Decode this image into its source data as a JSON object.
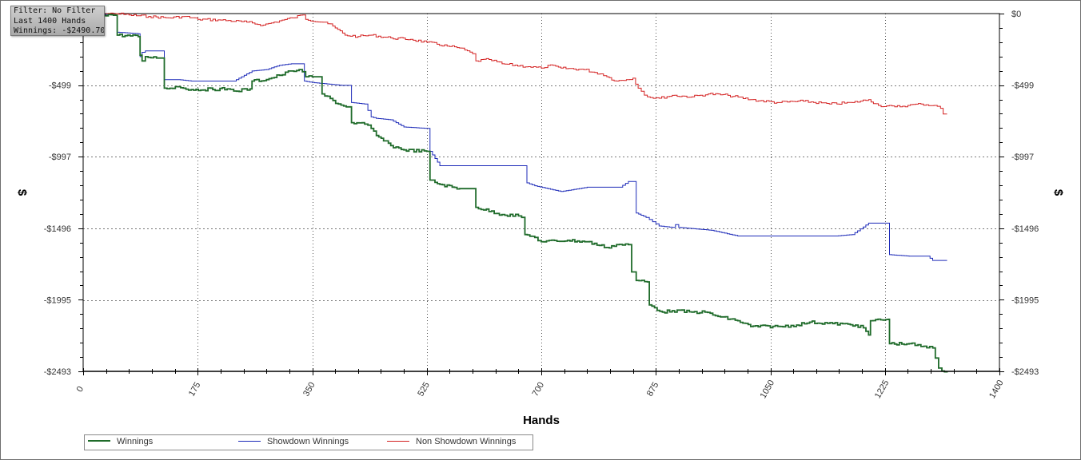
{
  "info_box": {
    "line1": "Filter: No Filter",
    "line2": "Last 1400 Hands",
    "line3": "Winnings: -$2490.70"
  },
  "chart_data": {
    "type": "line",
    "xlabel": "Hands",
    "ylabel_left": "$",
    "ylabel_right": "$",
    "xlim": [
      0,
      1400
    ],
    "ylim": [
      -2493,
      0
    ],
    "x_ticks": [
      "0",
      "175",
      "350",
      "525",
      "700",
      "875",
      "1050",
      "1225",
      "1400"
    ],
    "x_tick_values": [
      0,
      175,
      350,
      525,
      700,
      875,
      1050,
      1225,
      1400
    ],
    "y_ticks": [
      "$0",
      "-$499",
      "-$997",
      "-$1496",
      "-$1995",
      "-$2493"
    ],
    "y_tick_values": [
      0,
      -499,
      -997,
      -1496,
      -1995,
      -2493
    ],
    "grid": true,
    "legend_position": "bottom-left",
    "series": [
      {
        "name": "Winnings",
        "color": "#1f6b2a",
        "points": [
          [
            0,
            0
          ],
          [
            50,
            -10
          ],
          [
            52,
            -150
          ],
          [
            84,
            -160
          ],
          [
            87,
            -290
          ],
          [
            90,
            -330
          ],
          [
            95,
            -300
          ],
          [
            112,
            -310
          ],
          [
            124,
            -520
          ],
          [
            145,
            -510
          ],
          [
            165,
            -530
          ],
          [
            220,
            -525
          ],
          [
            230,
            -540
          ],
          [
            255,
            -525
          ],
          [
            258,
            -470
          ],
          [
            280,
            -460
          ],
          [
            300,
            -430
          ],
          [
            318,
            -400
          ],
          [
            330,
            -390
          ],
          [
            340,
            -440
          ],
          [
            350,
            -440
          ],
          [
            365,
            -560
          ],
          [
            390,
            -630
          ],
          [
            402,
            -650
          ],
          [
            410,
            -760
          ],
          [
            430,
            -770
          ],
          [
            440,
            -800
          ],
          [
            448,
            -850
          ],
          [
            470,
            -920
          ],
          [
            490,
            -950
          ],
          [
            525,
            -960
          ],
          [
            530,
            -1160
          ],
          [
            545,
            -1190
          ],
          [
            575,
            -1220
          ],
          [
            600,
            -1350
          ],
          [
            640,
            -1400
          ],
          [
            665,
            -1410
          ],
          [
            670,
            -1420
          ],
          [
            675,
            -1540
          ],
          [
            690,
            -1560
          ],
          [
            700,
            -1590
          ],
          [
            740,
            -1580
          ],
          [
            770,
            -1590
          ],
          [
            800,
            -1630
          ],
          [
            815,
            -1610
          ],
          [
            833,
            -1610
          ],
          [
            838,
            -1800
          ],
          [
            845,
            -1860
          ],
          [
            862,
            -1870
          ],
          [
            865,
            -2030
          ],
          [
            885,
            -2080
          ],
          [
            900,
            -2070
          ],
          [
            930,
            -2080
          ],
          [
            950,
            -2080
          ],
          [
            970,
            -2110
          ],
          [
            1000,
            -2140
          ],
          [
            1020,
            -2180
          ],
          [
            1065,
            -2180
          ],
          [
            1090,
            -2170
          ],
          [
            1110,
            -2150
          ],
          [
            1145,
            -2160
          ],
          [
            1180,
            -2170
          ],
          [
            1192,
            -2190
          ],
          [
            1200,
            -2240
          ],
          [
            1203,
            -2140
          ],
          [
            1230,
            -2130
          ],
          [
            1232,
            -2300
          ],
          [
            1262,
            -2300
          ],
          [
            1280,
            -2320
          ],
          [
            1298,
            -2330
          ],
          [
            1302,
            -2400
          ],
          [
            1307,
            -2470
          ],
          [
            1312,
            -2490
          ],
          [
            1320,
            -2493
          ]
        ]
      },
      {
        "name": "Showdown Winnings",
        "color": "#1c2ab8",
        "points": [
          [
            0,
            0
          ],
          [
            50,
            -10
          ],
          [
            52,
            -130
          ],
          [
            84,
            -140
          ],
          [
            87,
            -300
          ],
          [
            90,
            -270
          ],
          [
            95,
            -260
          ],
          [
            112,
            -260
          ],
          [
            124,
            -460
          ],
          [
            145,
            -460
          ],
          [
            165,
            -470
          ],
          [
            230,
            -470
          ],
          [
            258,
            -400
          ],
          [
            280,
            -390
          ],
          [
            300,
            -360
          ],
          [
            318,
            -350
          ],
          [
            330,
            -350
          ],
          [
            338,
            -470
          ],
          [
            350,
            -480
          ],
          [
            395,
            -500
          ],
          [
            410,
            -620
          ],
          [
            430,
            -630
          ],
          [
            440,
            -720
          ],
          [
            448,
            -730
          ],
          [
            470,
            -740
          ],
          [
            490,
            -790
          ],
          [
            525,
            -800
          ],
          [
            530,
            -960
          ],
          [
            545,
            -1060
          ],
          [
            605,
            -1060
          ],
          [
            645,
            -1060
          ],
          [
            675,
            -1060
          ],
          [
            678,
            -1180
          ],
          [
            690,
            -1200
          ],
          [
            730,
            -1240
          ],
          [
            770,
            -1210
          ],
          [
            820,
            -1210
          ],
          [
            833,
            -1170
          ],
          [
            842,
            -1170
          ],
          [
            845,
            -1390
          ],
          [
            860,
            -1420
          ],
          [
            870,
            -1450
          ],
          [
            880,
            -1480
          ],
          [
            900,
            -1490
          ],
          [
            905,
            -1470
          ],
          [
            910,
            -1490
          ],
          [
            960,
            -1510
          ],
          [
            1000,
            -1550
          ],
          [
            1060,
            -1550
          ],
          [
            1100,
            -1550
          ],
          [
            1150,
            -1550
          ],
          [
            1175,
            -1540
          ],
          [
            1200,
            -1460
          ],
          [
            1228,
            -1460
          ],
          [
            1232,
            -1680
          ],
          [
            1262,
            -1690
          ],
          [
            1290,
            -1690
          ],
          [
            1298,
            -1720
          ],
          [
            1320,
            -1720
          ]
        ]
      },
      {
        "name": "Non Showdown Winnings",
        "color": "#d42020",
        "points": [
          [
            0,
            0
          ],
          [
            50,
            0
          ],
          [
            70,
            -10
          ],
          [
            100,
            -20
          ],
          [
            130,
            -30
          ],
          [
            155,
            -20
          ],
          [
            175,
            -40
          ],
          [
            210,
            -45
          ],
          [
            250,
            -60
          ],
          [
            275,
            -80
          ],
          [
            300,
            -50
          ],
          [
            320,
            -30
          ],
          [
            335,
            -10
          ],
          [
            340,
            -40
          ],
          [
            370,
            -60
          ],
          [
            385,
            -100
          ],
          [
            400,
            -150
          ],
          [
            420,
            -160
          ],
          [
            440,
            -150
          ],
          [
            470,
            -170
          ],
          [
            500,
            -180
          ],
          [
            525,
            -200
          ],
          [
            560,
            -230
          ],
          [
            575,
            -240
          ],
          [
            595,
            -280
          ],
          [
            600,
            -330
          ],
          [
            620,
            -320
          ],
          [
            640,
            -350
          ],
          [
            680,
            -370
          ],
          [
            700,
            -380
          ],
          [
            710,
            -360
          ],
          [
            730,
            -380
          ],
          [
            765,
            -390
          ],
          [
            790,
            -420
          ],
          [
            800,
            -440
          ],
          [
            815,
            -470
          ],
          [
            830,
            -460
          ],
          [
            840,
            -450
          ],
          [
            848,
            -520
          ],
          [
            862,
            -580
          ],
          [
            880,
            -590
          ],
          [
            900,
            -570
          ],
          [
            930,
            -580
          ],
          [
            955,
            -560
          ],
          [
            985,
            -570
          ],
          [
            1020,
            -600
          ],
          [
            1060,
            -620
          ],
          [
            1100,
            -610
          ],
          [
            1140,
            -630
          ],
          [
            1175,
            -620
          ],
          [
            1200,
            -600
          ],
          [
            1215,
            -640
          ],
          [
            1240,
            -650
          ],
          [
            1260,
            -640
          ],
          [
            1280,
            -630
          ],
          [
            1300,
            -640
          ],
          [
            1310,
            -660
          ],
          [
            1314,
            -700
          ],
          [
            1320,
            -700
          ]
        ]
      }
    ]
  }
}
